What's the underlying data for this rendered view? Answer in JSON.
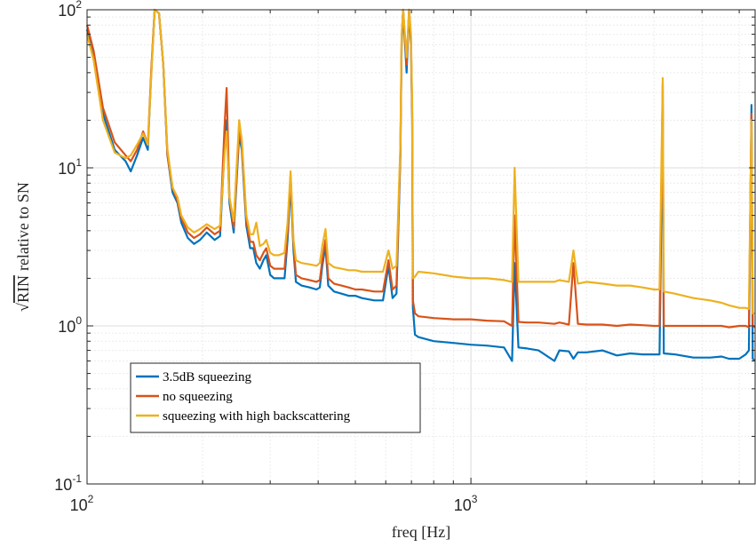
{
  "chart_data": {
    "type": "line",
    "title": "",
    "xlabel": "freq [Hz]",
    "ylabel": "relative to SN",
    "ylabel_radical": "√",
    "ylabel_radicand": "RIN",
    "xscale": "log",
    "yscale": "log",
    "xlim": [
      100,
      5500
    ],
    "ylim": [
      0.1,
      100
    ],
    "grid": true,
    "legend_position": "lower-left",
    "x_ticks": [
      {
        "base": "10",
        "exp": "2",
        "value": 100
      },
      {
        "base": "10",
        "exp": "3",
        "value": 1000
      }
    ],
    "y_ticks": [
      {
        "base": "10",
        "exp": "-1",
        "value": 0.1
      },
      {
        "base": "10",
        "exp": "0",
        "value": 1
      },
      {
        "base": "10",
        "exp": "1",
        "value": 10
      },
      {
        "base": "10",
        "exp": "2",
        "value": 100
      }
    ],
    "series": [
      {
        "name": "3.5dB squeezing",
        "color": "#0072BD",
        "points": [
          [
            100,
            75
          ],
          [
            104,
            50
          ],
          [
            110,
            22
          ],
          [
            118,
            13
          ],
          [
            126,
            11
          ],
          [
            130,
            9.5
          ],
          [
            135,
            12
          ],
          [
            140,
            15.5
          ],
          [
            144,
            13
          ],
          [
            147,
            40
          ],
          [
            150,
            100
          ],
          [
            154,
            95
          ],
          [
            158,
            45
          ],
          [
            162,
            12
          ],
          [
            167,
            7
          ],
          [
            172,
            6
          ],
          [
            176,
            4.5
          ],
          [
            183,
            3.6
          ],
          [
            190,
            3.3
          ],
          [
            197,
            3.5
          ],
          [
            205,
            3.9
          ],
          [
            215,
            3.5
          ],
          [
            222,
            3.7
          ],
          [
            228,
            13
          ],
          [
            231,
            20
          ],
          [
            235,
            6
          ],
          [
            241,
            3.9
          ],
          [
            249,
            16
          ],
          [
            253,
            13
          ],
          [
            260,
            4.3
          ],
          [
            266,
            3.1
          ],
          [
            271,
            3.1
          ],
          [
            276,
            2.5
          ],
          [
            282,
            2.3
          ],
          [
            288,
            2.6
          ],
          [
            293,
            2.8
          ],
          [
            300,
            2.1
          ],
          [
            307,
            2.0
          ],
          [
            316,
            2.0
          ],
          [
            327,
            2.0
          ],
          [
            333,
            3.5
          ],
          [
            339,
            8
          ],
          [
            345,
            3
          ],
          [
            350,
            1.9
          ],
          [
            362,
            1.8
          ],
          [
            380,
            1.75
          ],
          [
            396,
            1.7
          ],
          [
            404,
            1.75
          ],
          [
            410,
            2.4
          ],
          [
            418,
            3.2
          ],
          [
            425,
            1.8
          ],
          [
            440,
            1.65
          ],
          [
            460,
            1.6
          ],
          [
            480,
            1.55
          ],
          [
            500,
            1.55
          ],
          [
            520,
            1.5
          ],
          [
            560,
            1.45
          ],
          [
            590,
            1.45
          ],
          [
            610,
            2.4
          ],
          [
            625,
            1.5
          ],
          [
            640,
            1.6
          ],
          [
            655,
            12
          ],
          [
            660,
            60
          ],
          [
            666,
            100
          ],
          [
            680,
            40
          ],
          [
            690,
            100
          ],
          [
            698,
            60
          ],
          [
            703,
            20
          ],
          [
            706,
            1.3
          ],
          [
            715,
            0.88
          ],
          [
            730,
            0.85
          ],
          [
            800,
            0.8
          ],
          [
            900,
            0.78
          ],
          [
            1000,
            0.76
          ],
          [
            1100,
            0.75
          ],
          [
            1220,
            0.73
          ],
          [
            1280,
            0.6
          ],
          [
            1300,
            2.5
          ],
          [
            1330,
            0.73
          ],
          [
            1400,
            0.72
          ],
          [
            1500,
            0.7
          ],
          [
            1650,
            0.6
          ],
          [
            1700,
            0.7
          ],
          [
            1800,
            0.69
          ],
          [
            1850,
            0.62
          ],
          [
            1900,
            0.68
          ],
          [
            2000,
            0.68
          ],
          [
            2200,
            0.7
          ],
          [
            2400,
            0.65
          ],
          [
            2600,
            0.67
          ],
          [
            2800,
            0.66
          ],
          [
            3000,
            0.66
          ],
          [
            3100,
            0.66
          ],
          [
            3160,
            25
          ],
          [
            3180,
            0.67
          ],
          [
            3400,
            0.66
          ],
          [
            3800,
            0.63
          ],
          [
            4200,
            0.63
          ],
          [
            4500,
            0.64
          ],
          [
            4700,
            0.62
          ],
          [
            5000,
            0.62
          ],
          [
            5200,
            0.66
          ],
          [
            5300,
            0.7
          ],
          [
            5380,
            25
          ],
          [
            5420,
            0.62
          ],
          [
            5500,
            0.6
          ]
        ]
      },
      {
        "name": "no squeezing",
        "color": "#D95319",
        "points": [
          [
            100,
            80
          ],
          [
            104,
            55
          ],
          [
            110,
            24
          ],
          [
            118,
            14.5
          ],
          [
            126,
            12
          ],
          [
            130,
            11
          ],
          [
            135,
            13
          ],
          [
            140,
            17
          ],
          [
            144,
            14
          ],
          [
            147,
            42
          ],
          [
            150,
            100
          ],
          [
            154,
            95
          ],
          [
            158,
            45
          ],
          [
            162,
            12
          ],
          [
            167,
            7.5
          ],
          [
            172,
            6.2
          ],
          [
            176,
            4.8
          ],
          [
            183,
            3.9
          ],
          [
            190,
            3.6
          ],
          [
            197,
            3.8
          ],
          [
            205,
            4.2
          ],
          [
            215,
            3.8
          ],
          [
            222,
            4.0
          ],
          [
            228,
            18
          ],
          [
            231,
            32
          ],
          [
            235,
            6.5
          ],
          [
            241,
            4.2
          ],
          [
            249,
            17
          ],
          [
            253,
            14
          ],
          [
            260,
            4.6
          ],
          [
            266,
            3.4
          ],
          [
            271,
            3.4
          ],
          [
            276,
            2.8
          ],
          [
            282,
            2.6
          ],
          [
            288,
            2.9
          ],
          [
            293,
            3.1
          ],
          [
            300,
            2.4
          ],
          [
            307,
            2.3
          ],
          [
            316,
            2.3
          ],
          [
            327,
            2.3
          ],
          [
            333,
            3.9
          ],
          [
            339,
            9
          ],
          [
            345,
            3.3
          ],
          [
            350,
            2.1
          ],
          [
            362,
            2.0
          ],
          [
            380,
            1.95
          ],
          [
            396,
            1.9
          ],
          [
            404,
            1.95
          ],
          [
            410,
            2.6
          ],
          [
            418,
            3.5
          ],
          [
            425,
            2.0
          ],
          [
            440,
            1.85
          ],
          [
            460,
            1.8
          ],
          [
            480,
            1.75
          ],
          [
            500,
            1.7
          ],
          [
            520,
            1.7
          ],
          [
            560,
            1.65
          ],
          [
            590,
            1.65
          ],
          [
            610,
            2.6
          ],
          [
            625,
            1.7
          ],
          [
            640,
            1.8
          ],
          [
            655,
            13
          ],
          [
            660,
            65
          ],
          [
            666,
            100
          ],
          [
            680,
            45
          ],
          [
            690,
            100
          ],
          [
            698,
            65
          ],
          [
            703,
            22
          ],
          [
            706,
            1.45
          ],
          [
            715,
            1.2
          ],
          [
            730,
            1.15
          ],
          [
            800,
            1.12
          ],
          [
            900,
            1.1
          ],
          [
            1000,
            1.1
          ],
          [
            1100,
            1.08
          ],
          [
            1220,
            1.07
          ],
          [
            1280,
            1.0
          ],
          [
            1300,
            5
          ],
          [
            1330,
            1.06
          ],
          [
            1400,
            1.05
          ],
          [
            1500,
            1.05
          ],
          [
            1650,
            1.03
          ],
          [
            1700,
            1.05
          ],
          [
            1800,
            1.02
          ],
          [
            1850,
            2.5
          ],
          [
            1900,
            1.03
          ],
          [
            2000,
            1.02
          ],
          [
            2200,
            1.02
          ],
          [
            2400,
            1.0
          ],
          [
            2600,
            1.02
          ],
          [
            2800,
            1.01
          ],
          [
            3000,
            1.0
          ],
          [
            3100,
            1.0
          ],
          [
            3160,
            34
          ],
          [
            3180,
            1.0
          ],
          [
            3400,
            1.0
          ],
          [
            3800,
            1.0
          ],
          [
            4200,
            1.0
          ],
          [
            4500,
            1.0
          ],
          [
            4700,
            0.98
          ],
          [
            5000,
            1.0
          ],
          [
            5200,
            1.0
          ],
          [
            5300,
            0.98
          ],
          [
            5380,
            22
          ],
          [
            5420,
            1.0
          ],
          [
            5500,
            0.98
          ]
        ]
      },
      {
        "name": "squeezing with high backscattering",
        "color": "#EDB120",
        "points": [
          [
            100,
            70
          ],
          [
            104,
            48
          ],
          [
            110,
            20
          ],
          [
            118,
            12.5
          ],
          [
            126,
            11.5
          ],
          [
            130,
            12
          ],
          [
            135,
            14
          ],
          [
            140,
            16.5
          ],
          [
            144,
            14
          ],
          [
            147,
            38
          ],
          [
            150,
            100
          ],
          [
            154,
            95
          ],
          [
            158,
            45
          ],
          [
            162,
            13
          ],
          [
            167,
            7.5
          ],
          [
            172,
            6.5
          ],
          [
            176,
            5
          ],
          [
            183,
            4.2
          ],
          [
            190,
            3.9
          ],
          [
            197,
            4.1
          ],
          [
            205,
            4.4
          ],
          [
            215,
            4.1
          ],
          [
            222,
            4.3
          ],
          [
            228,
            12
          ],
          [
            231,
            17
          ],
          [
            235,
            6.5
          ],
          [
            241,
            4.6
          ],
          [
            249,
            20
          ],
          [
            253,
            15
          ],
          [
            260,
            5
          ],
          [
            266,
            3.8
          ],
          [
            271,
            3.8
          ],
          [
            276,
            4.5
          ],
          [
            282,
            3.2
          ],
          [
            288,
            3.3
          ],
          [
            293,
            3.5
          ],
          [
            300,
            2.9
          ],
          [
            307,
            2.8
          ],
          [
            316,
            2.8
          ],
          [
            327,
            2.9
          ],
          [
            333,
            4.5
          ],
          [
            339,
            9.5
          ],
          [
            345,
            3.5
          ],
          [
            350,
            2.6
          ],
          [
            362,
            2.5
          ],
          [
            380,
            2.45
          ],
          [
            396,
            2.4
          ],
          [
            404,
            2.5
          ],
          [
            410,
            3.2
          ],
          [
            418,
            4.1
          ],
          [
            425,
            2.5
          ],
          [
            440,
            2.35
          ],
          [
            460,
            2.3
          ],
          [
            480,
            2.25
          ],
          [
            500,
            2.25
          ],
          [
            520,
            2.2
          ],
          [
            560,
            2.2
          ],
          [
            590,
            2.2
          ],
          [
            610,
            3.0
          ],
          [
            625,
            2.3
          ],
          [
            640,
            2.4
          ],
          [
            655,
            14
          ],
          [
            660,
            70
          ],
          [
            666,
            100
          ],
          [
            680,
            50
          ],
          [
            690,
            100
          ],
          [
            698,
            70
          ],
          [
            703,
            25
          ],
          [
            706,
            2.0
          ],
          [
            715,
            2.05
          ],
          [
            730,
            2.2
          ],
          [
            800,
            2.15
          ],
          [
            900,
            2.05
          ],
          [
            1000,
            2.0
          ],
          [
            1100,
            2.0
          ],
          [
            1220,
            1.95
          ],
          [
            1280,
            1.9
          ],
          [
            1300,
            10
          ],
          [
            1330,
            1.9
          ],
          [
            1400,
            1.9
          ],
          [
            1500,
            1.9
          ],
          [
            1650,
            1.9
          ],
          [
            1700,
            1.95
          ],
          [
            1800,
            1.9
          ],
          [
            1850,
            3
          ],
          [
            1900,
            1.85
          ],
          [
            2000,
            1.9
          ],
          [
            2200,
            1.85
          ],
          [
            2400,
            1.8
          ],
          [
            2600,
            1.8
          ],
          [
            2800,
            1.75
          ],
          [
            3000,
            1.7
          ],
          [
            3100,
            1.7
          ],
          [
            3160,
            37
          ],
          [
            3180,
            1.65
          ],
          [
            3400,
            1.6
          ],
          [
            3800,
            1.5
          ],
          [
            4200,
            1.45
          ],
          [
            4500,
            1.4
          ],
          [
            4700,
            1.35
          ],
          [
            5000,
            1.3
          ],
          [
            5200,
            1.3
          ],
          [
            5300,
            1.28
          ],
          [
            5380,
            20
          ],
          [
            5420,
            1.2
          ],
          [
            5500,
            1.2
          ]
        ]
      }
    ]
  }
}
